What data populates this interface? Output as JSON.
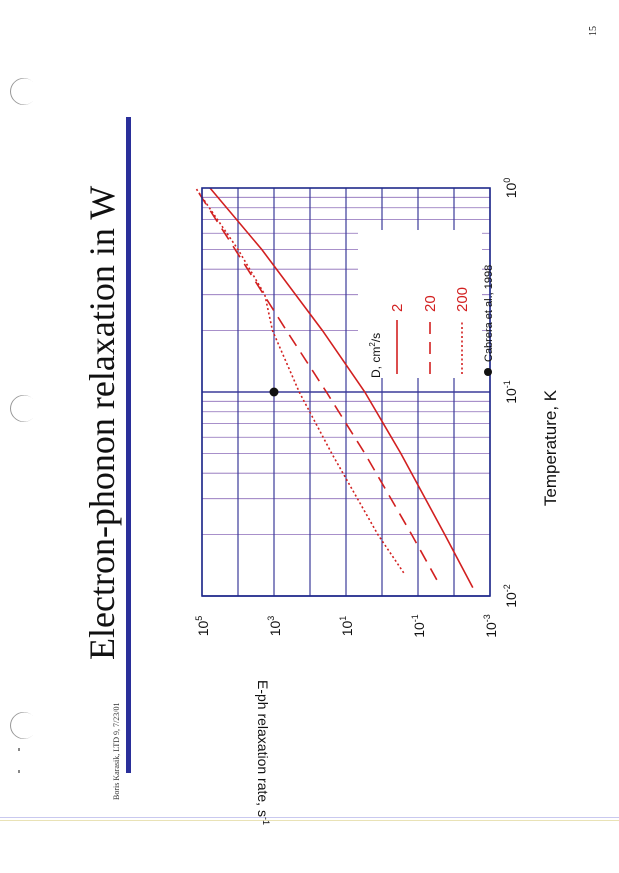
{
  "page": {
    "number": "15",
    "title": "Electron-phonon relaxation in W",
    "footer": "Boris Karasik, LTD 9, 7/23/01"
  },
  "colors": {
    "rule": "#2a2f9a",
    "frame": "#1f2a8a",
    "grid_major": "#3b3b9a",
    "grid_minor": "#8b6bb8",
    "curve": "#d22020",
    "text": "#111111"
  },
  "chart_data": {
    "type": "line",
    "xscale": "log",
    "yscale": "log",
    "xlim": [
      0.01,
      1
    ],
    "ylim": [
      0.001,
      100000
    ],
    "xlabel": "Temperature, K",
    "ylabel": "E-ph relaxation rate, s",
    "ylabel_sup": "-1",
    "xticks": [
      {
        "value": 0.01,
        "base": "10",
        "exp": "-2"
      },
      {
        "value": 0.1,
        "base": "10",
        "exp": "-1"
      },
      {
        "value": 1,
        "base": "10",
        "exp": "0"
      }
    ],
    "yticks": [
      {
        "value": 0.001,
        "base": "10",
        "exp": "-3"
      },
      {
        "value": 0.1,
        "base": "10",
        "exp": "-1"
      },
      {
        "value": 10,
        "base": "10",
        "exp": "1"
      },
      {
        "value": 1000,
        "base": "10",
        "exp": "3"
      },
      {
        "value": 100000,
        "base": "10",
        "exp": "5"
      }
    ],
    "grid": true,
    "legend": {
      "title_prefix": "D, cm",
      "title_sup": "2",
      "title_suffix": "/s",
      "placement": "lower-right"
    },
    "series": [
      {
        "name": "2",
        "style": "solid",
        "x": [
          0.011,
          0.02,
          0.05,
          0.1,
          0.2,
          0.5,
          1.0
        ],
        "y": [
          0.003,
          0.018,
          0.3,
          3,
          45,
          2200,
          60000
        ]
      },
      {
        "name": "20",
        "style": "dashed",
        "x": [
          0.012,
          0.02,
          0.05,
          0.1,
          0.2,
          0.5,
          1.0
        ],
        "y": [
          0.03,
          0.15,
          3,
          35,
          450,
          12000,
          150000
        ]
      },
      {
        "name": "200",
        "style": "dotted",
        "x": [
          0.013,
          0.02,
          0.05,
          0.1,
          0.2,
          0.3,
          0.5,
          1.0
        ],
        "y": [
          0.25,
          1.3,
          25,
          200,
          1100,
          1800,
          10000,
          150000
        ]
      }
    ],
    "points": [
      {
        "name": "Cabrera et al., 1998",
        "x": 0.1,
        "y": 1000
      }
    ]
  }
}
